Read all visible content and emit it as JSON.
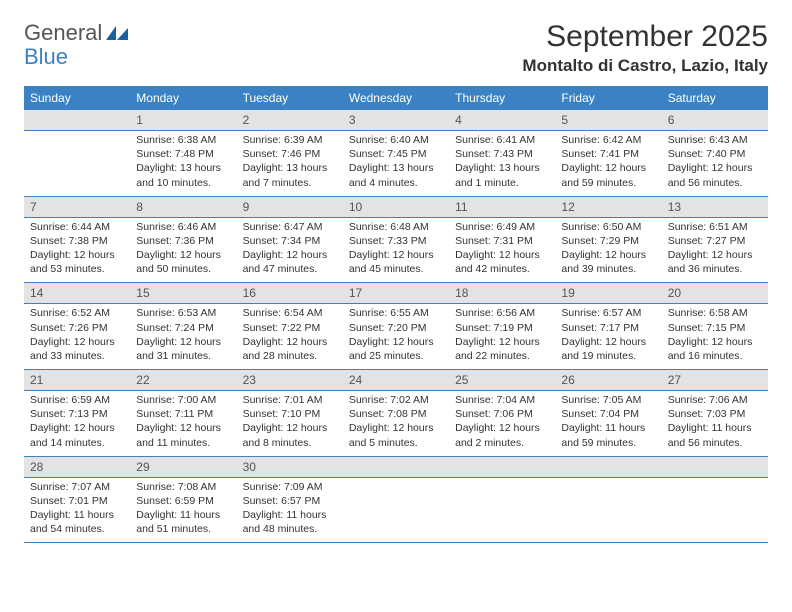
{
  "logo": {
    "part1": "General",
    "part2": "Blue",
    "icon_color": "#1a5fa0"
  },
  "header": {
    "month_title": "September 2025",
    "location": "Montalto di Castro, Lazio, Italy"
  },
  "colors": {
    "header_bg": "#3b82c4",
    "daynum_bg": "#e3e3e3",
    "border": "#3b82c4"
  },
  "weekdays": [
    "Sunday",
    "Monday",
    "Tuesday",
    "Wednesday",
    "Thursday",
    "Friday",
    "Saturday"
  ],
  "weeks": [
    {
      "nums": [
        "",
        "1",
        "2",
        "3",
        "4",
        "5",
        "6"
      ],
      "cells": [
        {
          "empty": true
        },
        {
          "sunrise": "Sunrise: 6:38 AM",
          "sunset": "Sunset: 7:48 PM",
          "daylight": "Daylight: 13 hours and 10 minutes."
        },
        {
          "sunrise": "Sunrise: 6:39 AM",
          "sunset": "Sunset: 7:46 PM",
          "daylight": "Daylight: 13 hours and 7 minutes."
        },
        {
          "sunrise": "Sunrise: 6:40 AM",
          "sunset": "Sunset: 7:45 PM",
          "daylight": "Daylight: 13 hours and 4 minutes."
        },
        {
          "sunrise": "Sunrise: 6:41 AM",
          "sunset": "Sunset: 7:43 PM",
          "daylight": "Daylight: 13 hours and 1 minute."
        },
        {
          "sunrise": "Sunrise: 6:42 AM",
          "sunset": "Sunset: 7:41 PM",
          "daylight": "Daylight: 12 hours and 59 minutes."
        },
        {
          "sunrise": "Sunrise: 6:43 AM",
          "sunset": "Sunset: 7:40 PM",
          "daylight": "Daylight: 12 hours and 56 minutes."
        }
      ]
    },
    {
      "nums": [
        "7",
        "8",
        "9",
        "10",
        "11",
        "12",
        "13"
      ],
      "cells": [
        {
          "sunrise": "Sunrise: 6:44 AM",
          "sunset": "Sunset: 7:38 PM",
          "daylight": "Daylight: 12 hours and 53 minutes."
        },
        {
          "sunrise": "Sunrise: 6:46 AM",
          "sunset": "Sunset: 7:36 PM",
          "daylight": "Daylight: 12 hours and 50 minutes."
        },
        {
          "sunrise": "Sunrise: 6:47 AM",
          "sunset": "Sunset: 7:34 PM",
          "daylight": "Daylight: 12 hours and 47 minutes."
        },
        {
          "sunrise": "Sunrise: 6:48 AM",
          "sunset": "Sunset: 7:33 PM",
          "daylight": "Daylight: 12 hours and 45 minutes."
        },
        {
          "sunrise": "Sunrise: 6:49 AM",
          "sunset": "Sunset: 7:31 PM",
          "daylight": "Daylight: 12 hours and 42 minutes."
        },
        {
          "sunrise": "Sunrise: 6:50 AM",
          "sunset": "Sunset: 7:29 PM",
          "daylight": "Daylight: 12 hours and 39 minutes."
        },
        {
          "sunrise": "Sunrise: 6:51 AM",
          "sunset": "Sunset: 7:27 PM",
          "daylight": "Daylight: 12 hours and 36 minutes."
        }
      ]
    },
    {
      "nums": [
        "14",
        "15",
        "16",
        "17",
        "18",
        "19",
        "20"
      ],
      "cells": [
        {
          "sunrise": "Sunrise: 6:52 AM",
          "sunset": "Sunset: 7:26 PM",
          "daylight": "Daylight: 12 hours and 33 minutes."
        },
        {
          "sunrise": "Sunrise: 6:53 AM",
          "sunset": "Sunset: 7:24 PM",
          "daylight": "Daylight: 12 hours and 31 minutes."
        },
        {
          "sunrise": "Sunrise: 6:54 AM",
          "sunset": "Sunset: 7:22 PM",
          "daylight": "Daylight: 12 hours and 28 minutes."
        },
        {
          "sunrise": "Sunrise: 6:55 AM",
          "sunset": "Sunset: 7:20 PM",
          "daylight": "Daylight: 12 hours and 25 minutes."
        },
        {
          "sunrise": "Sunrise: 6:56 AM",
          "sunset": "Sunset: 7:19 PM",
          "daylight": "Daylight: 12 hours and 22 minutes."
        },
        {
          "sunrise": "Sunrise: 6:57 AM",
          "sunset": "Sunset: 7:17 PM",
          "daylight": "Daylight: 12 hours and 19 minutes."
        },
        {
          "sunrise": "Sunrise: 6:58 AM",
          "sunset": "Sunset: 7:15 PM",
          "daylight": "Daylight: 12 hours and 16 minutes."
        }
      ]
    },
    {
      "nums": [
        "21",
        "22",
        "23",
        "24",
        "25",
        "26",
        "27"
      ],
      "cells": [
        {
          "sunrise": "Sunrise: 6:59 AM",
          "sunset": "Sunset: 7:13 PM",
          "daylight": "Daylight: 12 hours and 14 minutes."
        },
        {
          "sunrise": "Sunrise: 7:00 AM",
          "sunset": "Sunset: 7:11 PM",
          "daylight": "Daylight: 12 hours and 11 minutes."
        },
        {
          "sunrise": "Sunrise: 7:01 AM",
          "sunset": "Sunset: 7:10 PM",
          "daylight": "Daylight: 12 hours and 8 minutes."
        },
        {
          "sunrise": "Sunrise: 7:02 AM",
          "sunset": "Sunset: 7:08 PM",
          "daylight": "Daylight: 12 hours and 5 minutes."
        },
        {
          "sunrise": "Sunrise: 7:04 AM",
          "sunset": "Sunset: 7:06 PM",
          "daylight": "Daylight: 12 hours and 2 minutes."
        },
        {
          "sunrise": "Sunrise: 7:05 AM",
          "sunset": "Sunset: 7:04 PM",
          "daylight": "Daylight: 11 hours and 59 minutes."
        },
        {
          "sunrise": "Sunrise: 7:06 AM",
          "sunset": "Sunset: 7:03 PM",
          "daylight": "Daylight: 11 hours and 56 minutes."
        }
      ]
    },
    {
      "nums": [
        "28",
        "29",
        "30",
        "",
        "",
        "",
        ""
      ],
      "cells": [
        {
          "sunrise": "Sunrise: 7:07 AM",
          "sunset": "Sunset: 7:01 PM",
          "daylight": "Daylight: 11 hours and 54 minutes."
        },
        {
          "sunrise": "Sunrise: 7:08 AM",
          "sunset": "Sunset: 6:59 PM",
          "daylight": "Daylight: 11 hours and 51 minutes."
        },
        {
          "sunrise": "Sunrise: 7:09 AM",
          "sunset": "Sunset: 6:57 PM",
          "daylight": "Daylight: 11 hours and 48 minutes."
        },
        {
          "empty": true
        },
        {
          "empty": true
        },
        {
          "empty": true
        },
        {
          "empty": true
        }
      ]
    }
  ]
}
